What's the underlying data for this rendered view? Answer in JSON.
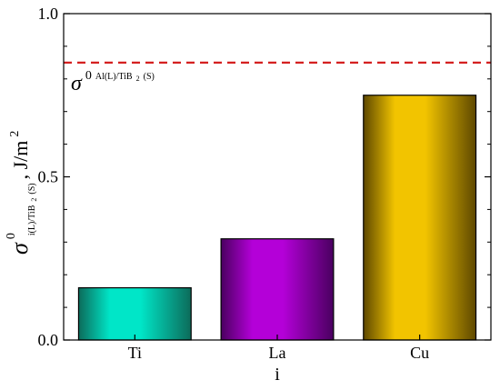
{
  "chart_data": {
    "type": "bar",
    "categories": [
      "Ti",
      "La",
      "Cu"
    ],
    "values": [
      0.16,
      0.31,
      0.75
    ],
    "bar_colors": [
      "#00e6c8",
      "#b400d8",
      "#f2c400"
    ],
    "bar_edge_colors": [
      "#0c6b5a",
      "#4a0060",
      "#5e4800"
    ],
    "xlabel": "i",
    "ylabel": {
      "symbol": "σ",
      "superscript": "0",
      "subscript_before": "i(L)/TiB",
      "subscript_sub": "2",
      "subscript_after": "(S)",
      "units_prefix": ", J/m",
      "units_superscript": "2"
    },
    "ylim": [
      0,
      1.0
    ],
    "yticks": [
      {
        "value": 0.0,
        "label": "0.0"
      },
      {
        "value": 0.5,
        "label": "0.5"
      },
      {
        "value": 1.0,
        "label": "1.0"
      }
    ],
    "reference_line": {
      "value": 0.85,
      "style": "dashed",
      "color": "#d42020",
      "label": {
        "symbol": "σ",
        "superscript": "0",
        "subscript_before": "Al(L)/TiB",
        "subscript_sub": "2",
        "subscript_after": " (S)"
      }
    },
    "grid": false
  }
}
